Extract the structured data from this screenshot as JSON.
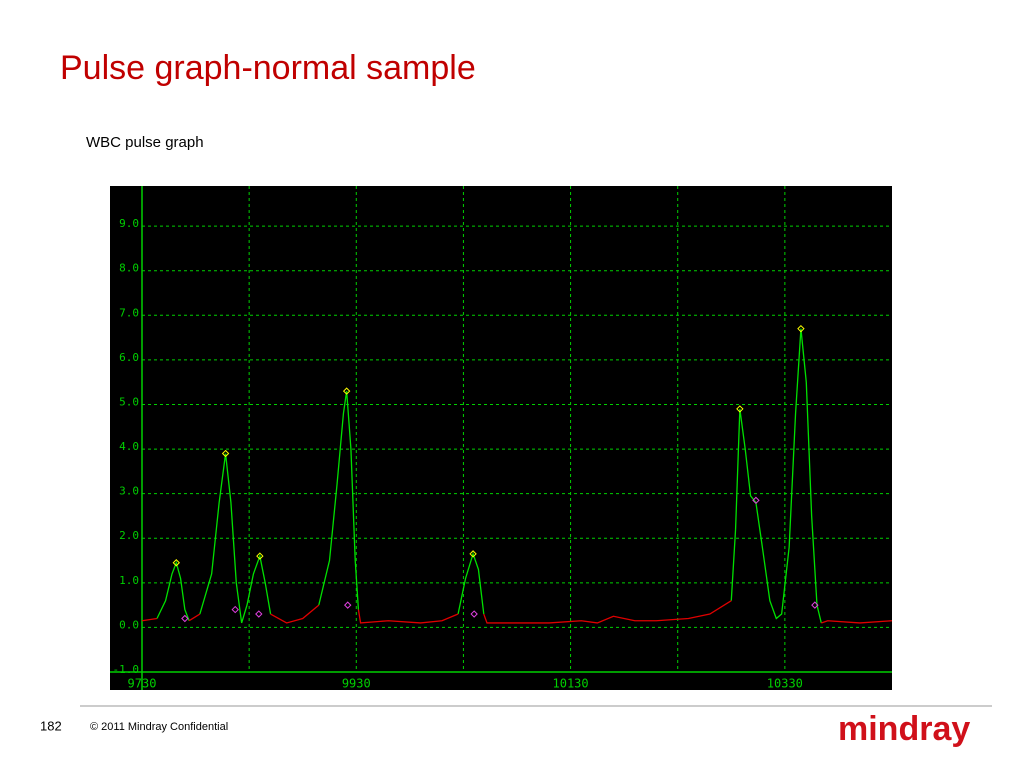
{
  "slide": {
    "title": "Pulse graph-normal sample",
    "subtitle": "WBC pulse graph",
    "page_number": "182",
    "footer": "© 2011 Mindray Confidential",
    "logo": "mindray"
  },
  "chart_data": {
    "type": "line",
    "xlim": [
      9730,
      10430
    ],
    "ylim": [
      -1.0,
      9.9
    ],
    "xticks": [
      9730,
      {
        "value": 9830,
        "label": null
      },
      9930,
      {
        "value": 10030,
        "label": null
      },
      10130,
      {
        "value": 10230,
        "label": null
      },
      10330
    ],
    "yticks": [
      {
        "value": -1,
        "label": "-1.0"
      },
      {
        "value": 0,
        "label": "0.0"
      },
      {
        "value": 1,
        "label": "1.0"
      },
      {
        "value": 2,
        "label": "2.0"
      },
      {
        "value": 3,
        "label": "3.0"
      },
      {
        "value": 4,
        "label": "4.0"
      },
      {
        "value": 5,
        "label": "5.0"
      },
      {
        "value": 6,
        "label": "6.0"
      },
      {
        "value": 7,
        "label": "7.0"
      },
      {
        "value": 8,
        "label": "8.0"
      },
      {
        "value": 9,
        "label": "9.0"
      }
    ],
    "grid": true,
    "series": [
      {
        "color": "#00e000",
        "style": "line",
        "x": [
          9744,
          9752,
          9758,
          9762,
          9766,
          9770,
          9774,
          null,
          9784,
          9795,
          9802,
          9808,
          9813,
          9818,
          9823,
          9828,
          9834,
          9840,
          9845,
          9850,
          null,
          9895,
          9905,
          9912,
          9918,
          9921,
          9925,
          9929,
          9932,
          null,
          10025,
          10032,
          10039,
          10044,
          10049,
          null,
          10280,
          10284,
          10288,
          10293,
          10298,
          10303,
          10309,
          10316,
          10322,
          10327,
          10334,
          10340,
          10345,
          10350,
          10355,
          10360,
          10364
        ],
        "values": [
          0.2,
          0.6,
          1.2,
          1.45,
          1.1,
          0.4,
          0.15,
          null,
          0.3,
          1.2,
          2.8,
          3.9,
          2.8,
          1.0,
          0.1,
          0.5,
          1.2,
          1.6,
          1.0,
          0.3,
          null,
          0.5,
          1.5,
          3.2,
          4.8,
          5.3,
          4.0,
          1.5,
          0.4,
          null,
          0.3,
          1.1,
          1.65,
          1.3,
          0.3,
          null,
          0.6,
          2.2,
          4.9,
          4.0,
          2.95,
          2.8,
          1.8,
          0.6,
          0.2,
          0.3,
          1.8,
          4.8,
          6.7,
          5.5,
          2.5,
          0.5,
          0.1
        ]
      },
      {
        "color": "#e00000",
        "style": "line",
        "x": [
          9730,
          9744,
          null,
          9774,
          9784,
          null,
          9850,
          9865,
          9880,
          9895,
          null,
          9932,
          9934,
          9960,
          9990,
          10010,
          10025,
          null,
          10049,
          10052,
          10080,
          10110,
          10140,
          10155,
          10170,
          10190,
          10210,
          10240,
          10260,
          10280,
          null,
          10364,
          10370,
          10400,
          10430
        ],
        "values": [
          0.15,
          0.2,
          null,
          0.15,
          0.3,
          null,
          0.3,
          0.1,
          0.2,
          0.5,
          null,
          0.4,
          0.1,
          0.15,
          0.1,
          0.15,
          0.3,
          null,
          0.3,
          0.1,
          0.1,
          0.1,
          0.15,
          0.1,
          0.25,
          0.15,
          0.15,
          0.2,
          0.3,
          0.6,
          null,
          0.1,
          0.15,
          0.1,
          0.15
        ]
      },
      {
        "color": "#ffff00",
        "style": "markers",
        "x": [
          9762,
          9808,
          9840,
          9921,
          10039,
          10288,
          10345
        ],
        "values": [
          1.45,
          3.9,
          1.6,
          5.3,
          1.65,
          4.9,
          6.7
        ]
      },
      {
        "color": "#e040e0",
        "style": "markers",
        "x": [
          9770,
          9817,
          9839,
          9922,
          10040,
          10303,
          10358
        ],
        "values": [
          0.2,
          0.4,
          0.3,
          0.5,
          0.3,
          2.85,
          0.5
        ]
      }
    ]
  }
}
